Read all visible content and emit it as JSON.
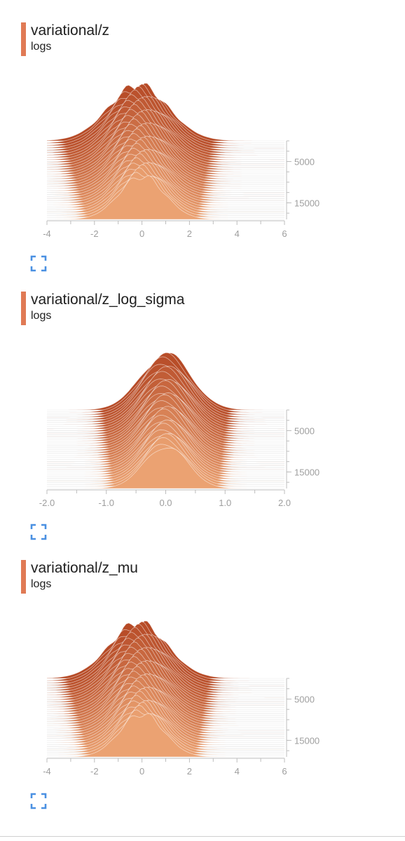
{
  "colors": {
    "accent": "#e07a55",
    "front": "#eba272",
    "back": "#b64a26",
    "axis": "#bdbdbd",
    "tick_text": "#9e9e9e",
    "expand_icon": "#4a90e2"
  },
  "icons": {
    "expand": "fullscreen-expand-icon"
  },
  "cards": [
    {
      "title": "variational/z",
      "subtitle": "logs"
    },
    {
      "title": "variational/z_log_sigma",
      "subtitle": "logs"
    },
    {
      "title": "variational/z_mu",
      "subtitle": "logs"
    }
  ],
  "chart_data": [
    {
      "type": "histogram-offset",
      "x_ticks": [
        "-4",
        "-2",
        "0",
        "2",
        "4",
        "6"
      ],
      "x_tick_values": [
        -4,
        -2,
        0,
        2,
        4,
        6
      ],
      "xlim": [
        -4,
        6
      ],
      "step_ticks": [
        "5000",
        "15000"
      ],
      "step_tick_values": [
        5000,
        15000
      ],
      "step_range": [
        0,
        19000
      ],
      "grid": true,
      "distribution": {
        "center": 0.0,
        "sigma_start": 1.25,
        "sigma_end": 0.95,
        "drift": -0.15
      }
    },
    {
      "type": "histogram-offset",
      "x_ticks": [
        "-2.0",
        "-1.0",
        "0.0",
        "1.0",
        "2.0"
      ],
      "x_tick_values": [
        -2,
        -1,
        0,
        1,
        2
      ],
      "xlim": [
        -2,
        2
      ],
      "step_ticks": [
        "5000",
        "15000"
      ],
      "step_tick_values": [
        5000,
        15000
      ],
      "step_range": [
        0,
        19000
      ],
      "grid": true,
      "distribution": {
        "center": 0.0,
        "sigma_start": 0.42,
        "sigma_end": 0.36,
        "drift": 0.0
      }
    },
    {
      "type": "histogram-offset",
      "x_ticks": [
        "-4",
        "-2",
        "0",
        "2",
        "4",
        "6"
      ],
      "x_tick_values": [
        -4,
        -2,
        0,
        2,
        4,
        6
      ],
      "xlim": [
        -4,
        6
      ],
      "step_ticks": [
        "5000",
        "15000"
      ],
      "step_tick_values": [
        5000,
        15000
      ],
      "step_range": [
        0,
        19000
      ],
      "grid": true,
      "distribution": {
        "center": 0.0,
        "sigma_start": 1.2,
        "sigma_end": 0.92,
        "drift": -0.15
      }
    }
  ]
}
